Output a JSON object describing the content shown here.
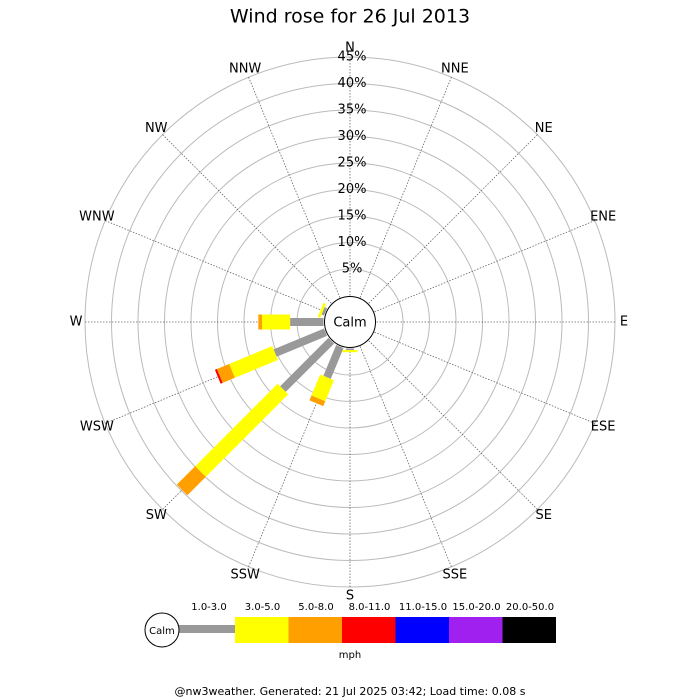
{
  "chart_data": {
    "type": "windrose",
    "title": "Wind rose for 26 Jul 2013",
    "directions": [
      "N",
      "NNE",
      "NE",
      "ENE",
      "E",
      "ESE",
      "SE",
      "SSE",
      "S",
      "SSW",
      "SW",
      "WSW",
      "W",
      "WNW",
      "NW",
      "NNW"
    ],
    "calm_label": "Calm",
    "unit_label": "mph",
    "rlim": [
      0,
      45
    ],
    "rticks": [
      {
        "value": 5,
        "label": "5%"
      },
      {
        "value": 10,
        "label": "10%"
      },
      {
        "value": 15,
        "label": "15%"
      },
      {
        "value": 20,
        "label": "20%"
      },
      {
        "value": 25,
        "label": "25%"
      },
      {
        "value": 30,
        "label": "30%"
      },
      {
        "value": 35,
        "label": "35%"
      },
      {
        "value": 40,
        "label": "40%"
      },
      {
        "value": 45,
        "label": "45%"
      }
    ],
    "series": [
      {
        "name": "1.0-3.0",
        "color": "#999999",
        "values": [
          0,
          0,
          0,
          0,
          0,
          0,
          0,
          0,
          0.3,
          6.3,
          12.9,
          10.3,
          6.3,
          0.5,
          0,
          0
        ]
      },
      {
        "name": "3.0-5.0",
        "color": "#ffff00",
        "values": [
          0,
          0,
          0,
          0,
          0,
          0,
          0,
          0,
          0.4,
          4.3,
          22,
          8.8,
          5.3,
          0.5,
          0,
          0
        ]
      },
      {
        "name": "5.0-8.0",
        "color": "#ffa000",
        "values": [
          0,
          0,
          0,
          0,
          0,
          0,
          0,
          0,
          0,
          1,
          4.9,
          2.5,
          0.7,
          0,
          0,
          0
        ]
      },
      {
        "name": "8.0-11.0",
        "color": "#ff0000",
        "values": [
          0,
          0,
          0,
          0,
          0,
          0,
          0,
          0,
          0,
          0,
          0,
          0.4,
          0,
          0,
          0,
          0
        ]
      },
      {
        "name": "11.0-15.0",
        "color": "#0000ff",
        "values": [
          0,
          0,
          0,
          0,
          0,
          0,
          0,
          0,
          0,
          0,
          0,
          0,
          0,
          0,
          0,
          0
        ]
      },
      {
        "name": "15.0-20.0",
        "color": "#a020f0",
        "values": [
          0,
          0,
          0,
          0,
          0,
          0,
          0,
          0,
          0,
          0,
          0,
          0,
          0,
          0,
          0,
          0
        ]
      },
      {
        "name": "20.0-50.0",
        "color": "#000000",
        "values": [
          0,
          0,
          0,
          0,
          0,
          0,
          0,
          0,
          0,
          0,
          0,
          0,
          0,
          0,
          0,
          0
        ]
      }
    ],
    "footer": "@nw3weather. Generated: 21 Jul 2025 03:42; Load time: 0.08 s"
  }
}
